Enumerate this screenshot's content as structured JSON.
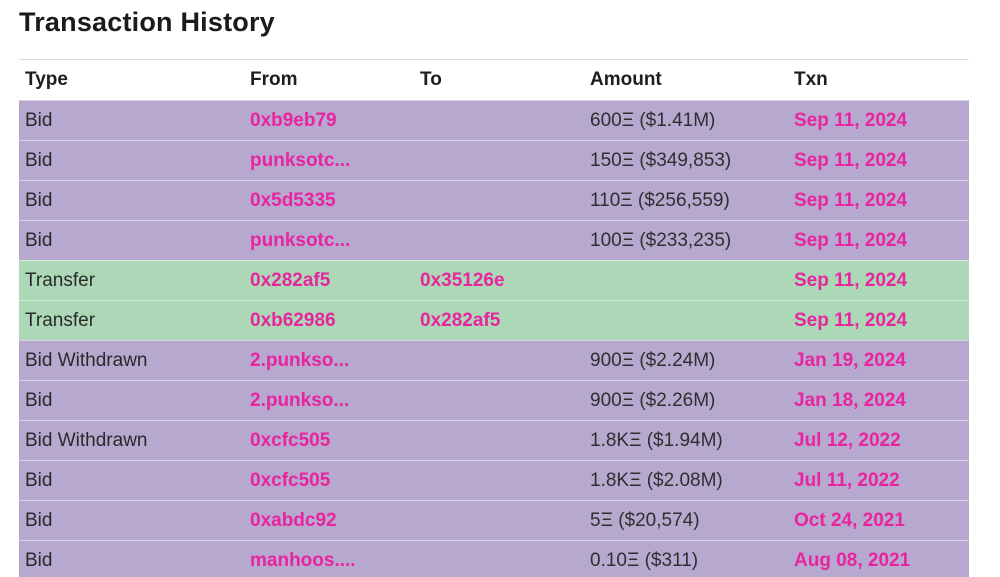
{
  "page": {
    "title": "Transaction History"
  },
  "table": {
    "headers": {
      "type": "Type",
      "from": "From",
      "to": "To",
      "amount": "Amount",
      "txn": "Txn"
    },
    "rows": [
      {
        "type": "Bid",
        "from": "0xb9eb79",
        "to": "",
        "amount": "600Ξ ($1.41M)",
        "txn": "Sep 11, 2024",
        "kind": "bid"
      },
      {
        "type": "Bid",
        "from": "punksotc...",
        "to": "",
        "amount": "150Ξ ($349,853)",
        "txn": "Sep 11, 2024",
        "kind": "bid"
      },
      {
        "type": "Bid",
        "from": "0x5d5335",
        "to": "",
        "amount": "110Ξ ($256,559)",
        "txn": "Sep 11, 2024",
        "kind": "bid"
      },
      {
        "type": "Bid",
        "from": "punksotc...",
        "to": "",
        "amount": "100Ξ ($233,235)",
        "txn": "Sep 11, 2024",
        "kind": "bid"
      },
      {
        "type": "Transfer",
        "from": "0x282af5",
        "to": "0x35126e",
        "amount": "",
        "txn": "Sep 11, 2024",
        "kind": "transfer"
      },
      {
        "type": "Transfer",
        "from": "0xb62986",
        "to": "0x282af5",
        "amount": "",
        "txn": "Sep 11, 2024",
        "kind": "transfer"
      },
      {
        "type": "Bid Withdrawn",
        "from": "2.punkso...",
        "to": "",
        "amount": "900Ξ ($2.24M)",
        "txn": "Jan 19, 2024",
        "kind": "bid"
      },
      {
        "type": "Bid",
        "from": "2.punkso...",
        "to": "",
        "amount": "900Ξ ($2.26M)",
        "txn": "Jan 18, 2024",
        "kind": "bid"
      },
      {
        "type": "Bid Withdrawn",
        "from": "0xcfc505",
        "to": "",
        "amount": "1.8KΞ ($1.94M)",
        "txn": "Jul 12, 2022",
        "kind": "bid"
      },
      {
        "type": "Bid",
        "from": "0xcfc505",
        "to": "",
        "amount": "1.8KΞ ($2.08M)",
        "txn": "Jul 11, 2022",
        "kind": "bid"
      },
      {
        "type": "Bid",
        "from": "0xabdc92",
        "to": "",
        "amount": "5Ξ ($20,574)",
        "txn": "Oct 24, 2021",
        "kind": "bid"
      },
      {
        "type": "Bid",
        "from": "manhoos....",
        "to": "",
        "amount": "0.10Ξ ($311)",
        "txn": "Aug 08, 2021",
        "kind": "bid"
      }
    ]
  },
  "colors": {
    "bid_row": "#b7a8cf",
    "transfer_row": "#acd8b8",
    "link": "#e8249e"
  }
}
